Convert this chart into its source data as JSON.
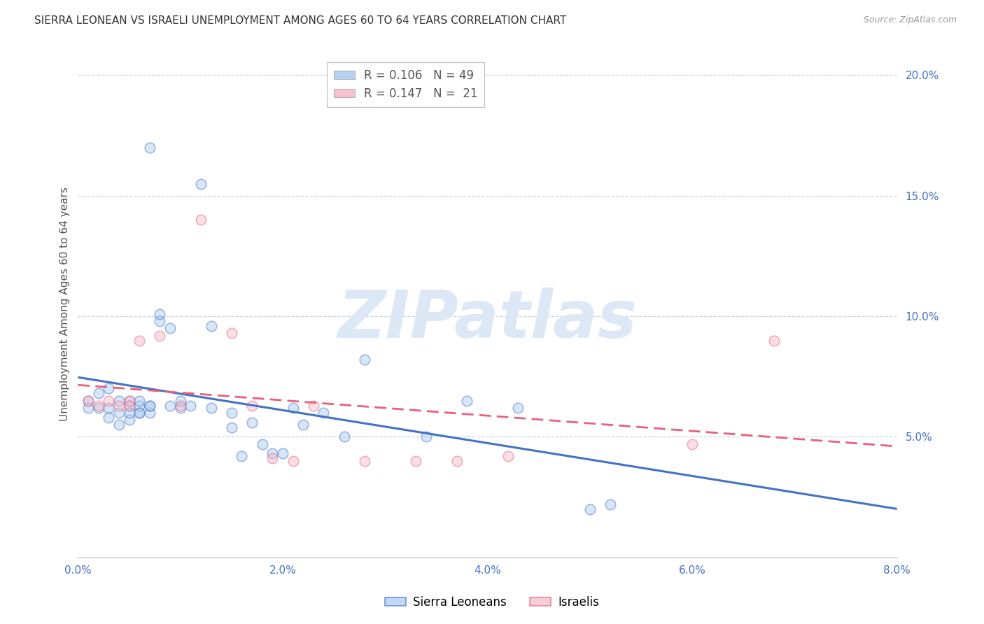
{
  "title": "SIERRA LEONEAN VS ISRAELI UNEMPLOYMENT AMONG AGES 60 TO 64 YEARS CORRELATION CHART",
  "source": "Source: ZipAtlas.com",
  "ylabel": "Unemployment Among Ages 60 to 64 years",
  "xlim": [
    0.0,
    0.08
  ],
  "ylim": [
    0.0,
    0.21
  ],
  "xticks": [
    0.0,
    0.01,
    0.02,
    0.03,
    0.04,
    0.05,
    0.06,
    0.07,
    0.08
  ],
  "xtick_labels": [
    "0.0%",
    "",
    "2.0%",
    "",
    "4.0%",
    "",
    "6.0%",
    "",
    "8.0%"
  ],
  "yticks_right": [
    0.05,
    0.1,
    0.15,
    0.2
  ],
  "ytick_labels_right": [
    "5.0%",
    "10.0%",
    "15.0%",
    "20.0%"
  ],
  "sl_color": "#a8c8f0",
  "il_color": "#f5b8c8",
  "trendline_sl_color": "#4472c4",
  "trendline_il_color": "#e8607a",
  "watermark": "ZIPatlas",
  "watermark_color": "#dce8f5",
  "legend_r_sl": "R = 0.106",
  "legend_n_sl": "N = 49",
  "legend_r_il": "R = 0.147",
  "legend_n_il": "N =  21",
  "sl_x": [
    0.001,
    0.001,
    0.002,
    0.002,
    0.003,
    0.003,
    0.003,
    0.004,
    0.004,
    0.004,
    0.005,
    0.005,
    0.005,
    0.005,
    0.006,
    0.006,
    0.006,
    0.006,
    0.007,
    0.007,
    0.007,
    0.007,
    0.008,
    0.008,
    0.009,
    0.009,
    0.01,
    0.01,
    0.011,
    0.012,
    0.013,
    0.013,
    0.015,
    0.015,
    0.016,
    0.017,
    0.018,
    0.019,
    0.02,
    0.021,
    0.022,
    0.024,
    0.026,
    0.028,
    0.034,
    0.038,
    0.043,
    0.05,
    0.052
  ],
  "sl_y": [
    0.065,
    0.062,
    0.068,
    0.062,
    0.07,
    0.062,
    0.058,
    0.065,
    0.06,
    0.055,
    0.063,
    0.065,
    0.057,
    0.06,
    0.06,
    0.063,
    0.065,
    0.06,
    0.06,
    0.063,
    0.17,
    0.063,
    0.098,
    0.101,
    0.095,
    0.063,
    0.062,
    0.065,
    0.063,
    0.155,
    0.062,
    0.096,
    0.06,
    0.054,
    0.042,
    0.056,
    0.047,
    0.043,
    0.043,
    0.062,
    0.055,
    0.06,
    0.05,
    0.082,
    0.05,
    0.065,
    0.062,
    0.02,
    0.022
  ],
  "il_x": [
    0.001,
    0.002,
    0.003,
    0.004,
    0.005,
    0.005,
    0.006,
    0.008,
    0.01,
    0.012,
    0.015,
    0.017,
    0.019,
    0.021,
    0.023,
    0.028,
    0.033,
    0.037,
    0.042,
    0.06,
    0.068
  ],
  "il_y": [
    0.065,
    0.063,
    0.065,
    0.063,
    0.065,
    0.063,
    0.09,
    0.092,
    0.063,
    0.14,
    0.093,
    0.063,
    0.041,
    0.04,
    0.063,
    0.04,
    0.04,
    0.04,
    0.042,
    0.047,
    0.09
  ],
  "background_color": "#ffffff",
  "grid_color": "#c8d4e8",
  "title_fontsize": 11,
  "axis_label_fontsize": 11,
  "tick_fontsize": 11,
  "marker_size": 110,
  "marker_alpha": 0.45,
  "marker_linewidth": 1.2,
  "trendline_sl_lw": 2.2,
  "trendline_il_lw": 2.0
}
